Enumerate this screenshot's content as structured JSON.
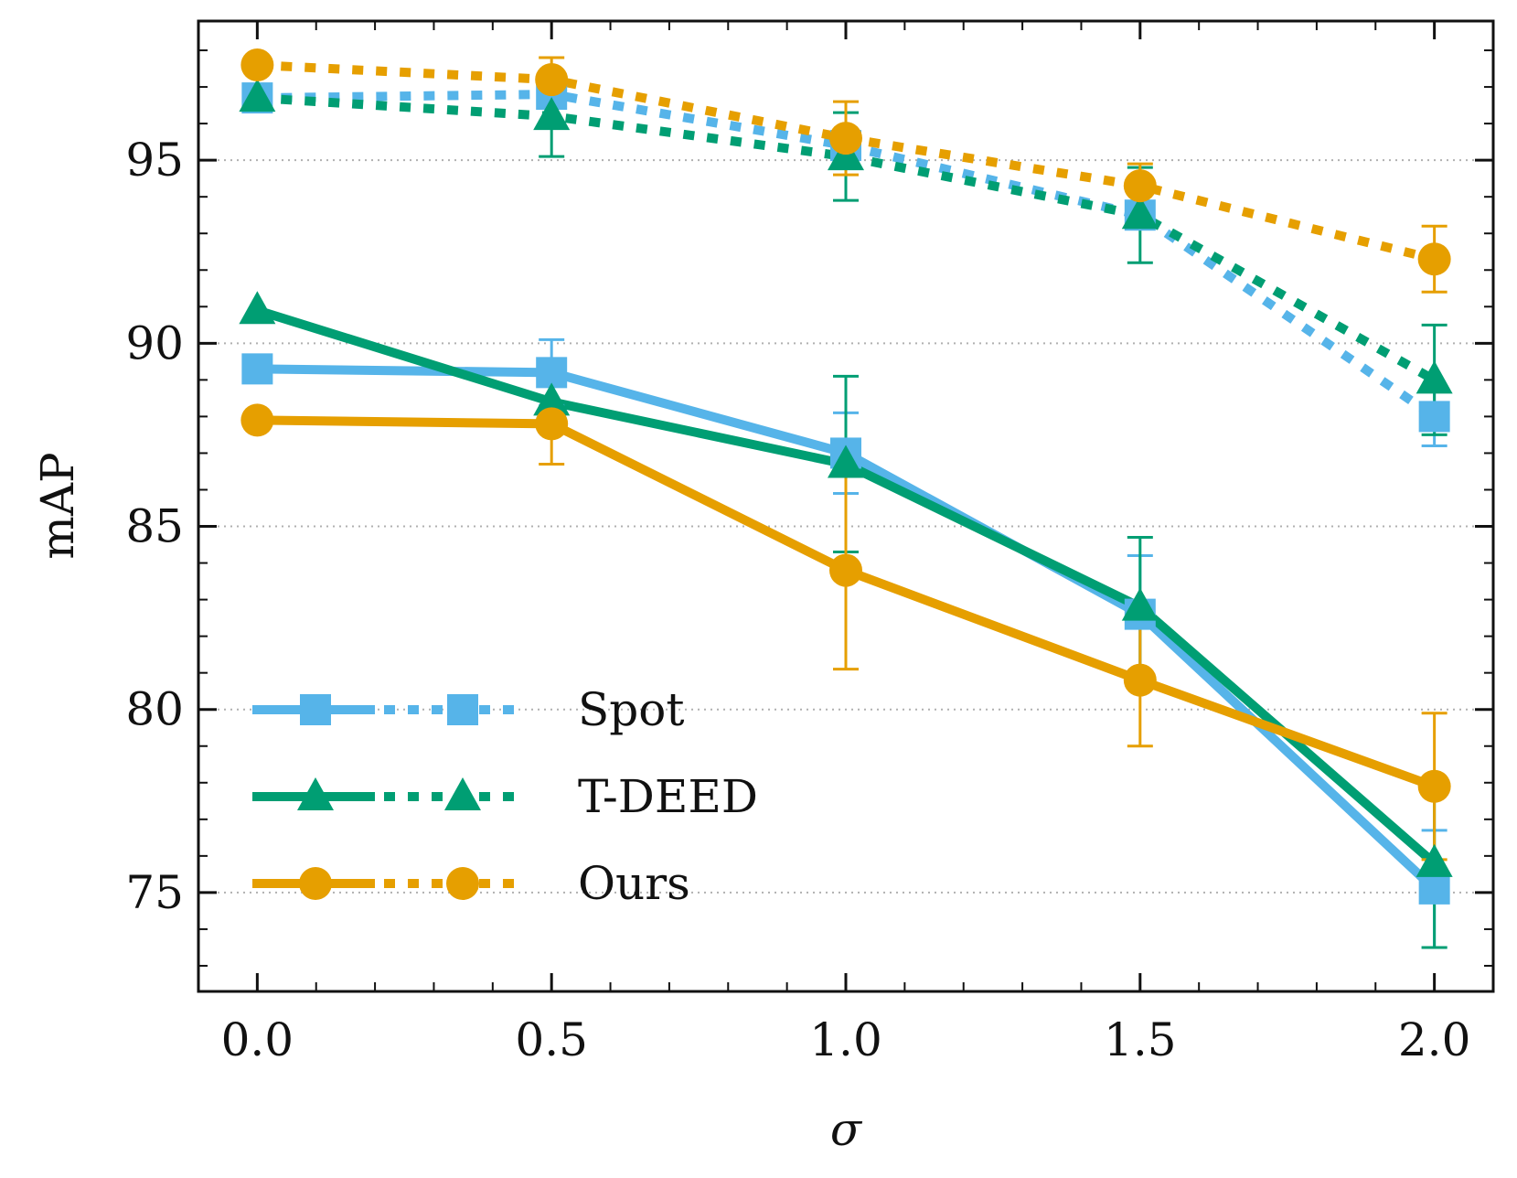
{
  "chart_data": {
    "type": "line",
    "title": "",
    "xlabel": "σ",
    "ylabel": "mAP",
    "xlim": [
      -0.1,
      2.1
    ],
    "ylim": [
      72.3,
      98.8
    ],
    "x": [
      0.0,
      0.5,
      1.0,
      1.5,
      2.0
    ],
    "x_tick_labels": [
      "0.0",
      "0.5",
      "1.0",
      "1.5",
      "2.0"
    ],
    "y_ticks": [
      75,
      80,
      85,
      90,
      95
    ],
    "y_tick_labels": [
      "75",
      "80",
      "85",
      "90",
      "95"
    ],
    "grid": "horizontal dotted",
    "legend_position": "lower-left",
    "series": [
      {
        "name": "Spot",
        "variant": "solid",
        "marker": "square",
        "color": "#56B4E9",
        "values": [
          89.3,
          89.2,
          87.0,
          82.6,
          75.1
        ],
        "error": [
          0,
          0.9,
          1.1,
          1.6,
          1.6
        ]
      },
      {
        "name": "T-DEED",
        "variant": "solid",
        "marker": "triangle",
        "color": "#009E73",
        "values": [
          90.9,
          88.4,
          86.7,
          82.8,
          75.8
        ],
        "error": [
          0,
          0.5,
          2.4,
          1.9,
          2.3
        ]
      },
      {
        "name": "Ours",
        "variant": "solid",
        "marker": "circle",
        "color": "#E69F00",
        "values": [
          87.9,
          87.8,
          83.8,
          80.8,
          77.9
        ],
        "error": [
          0,
          1.1,
          2.7,
          1.8,
          2.0
        ]
      },
      {
        "name": "Spot",
        "variant": "dotted",
        "marker": "square",
        "color": "#56B4E9",
        "values": [
          96.7,
          96.8,
          95.4,
          93.5,
          88.0
        ],
        "error": [
          0,
          0,
          0,
          0,
          0.8
        ]
      },
      {
        "name": "T-DEED",
        "variant": "dotted",
        "marker": "triangle",
        "color": "#009E73",
        "values": [
          96.7,
          96.2,
          95.1,
          93.5,
          89.0
        ],
        "error": [
          0,
          1.1,
          1.2,
          1.3,
          1.5
        ]
      },
      {
        "name": "Ours",
        "variant": "dotted",
        "marker": "circle",
        "color": "#E69F00",
        "values": [
          97.6,
          97.2,
          95.6,
          94.3,
          92.3
        ],
        "error": [
          0,
          0.6,
          1.0,
          0.6,
          0.9
        ]
      }
    ],
    "legend": [
      {
        "label": "Spot",
        "marker": "square",
        "color": "#56B4E9"
      },
      {
        "label": "T-DEED",
        "marker": "triangle",
        "color": "#009E73"
      },
      {
        "label": "Ours",
        "marker": "circle",
        "color": "#E69F00"
      }
    ]
  }
}
